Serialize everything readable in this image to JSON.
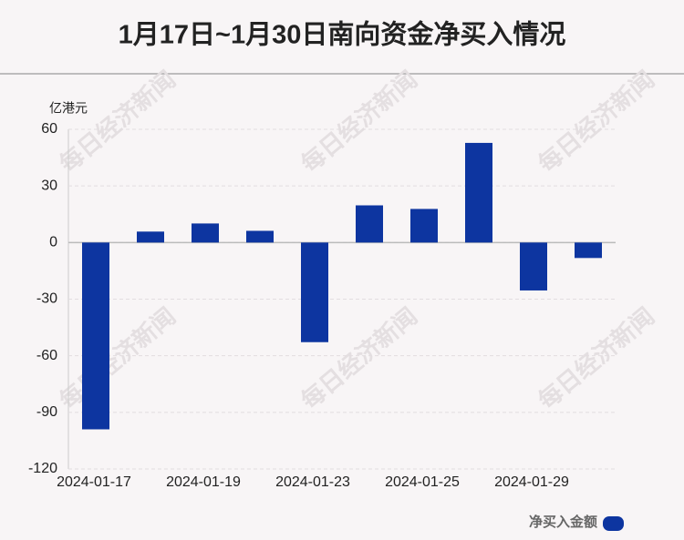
{
  "chart_data": {
    "type": "bar",
    "title": "1月17日~1月30日南向资金净买入情况",
    "y_label": "亿港元",
    "watermark": "每日经济新闻",
    "categories": [
      "2024-01-17",
      null,
      "2024-01-19",
      null,
      "2024-01-23",
      null,
      "2024-01-25",
      null,
      "2024-01-29",
      null
    ],
    "series": [
      {
        "name": "净买入金额",
        "color": "#0d35a0",
        "values": [
          -99,
          5.8,
          10.1,
          6.2,
          -52.8,
          19.7,
          17.8,
          52.8,
          -25.4,
          -8.2
        ]
      }
    ],
    "ylim": [
      -120,
      60
    ],
    "yticks": [
      -120,
      -90,
      -60,
      -30,
      0,
      30,
      60
    ],
    "grid": true,
    "legend": "lower right"
  }
}
